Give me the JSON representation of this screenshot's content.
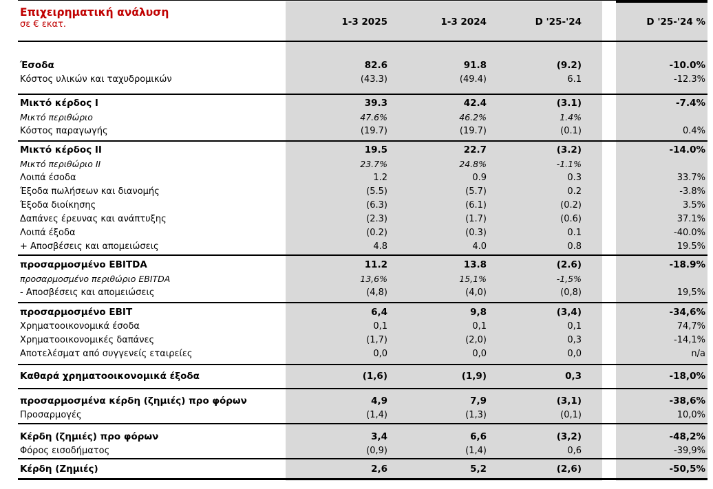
{
  "header": {
    "title": "Επιχειρηματική ανάλυση",
    "subtitle": "σε € εκατ.",
    "columns": [
      "1-3 2025",
      "1-3 2024",
      "D '25-'24",
      "D '25-'24 %"
    ]
  },
  "colors": {
    "accent_red": "#c00000",
    "column_background_gray": "#d9d9d9",
    "border_black": "#000000"
  },
  "sections": [
    {
      "rows": [
        {
          "label": "Έσοδα",
          "style": "bold",
          "values": [
            "82.6",
            "91.8",
            "(9.2)",
            "-10.0%"
          ]
        },
        {
          "label": "Κόστος υλικών και ταχυδρομικών",
          "style": "regular",
          "values": [
            "(43.3)",
            "(49.4)",
            "6.1",
            "-12.3%"
          ]
        }
      ]
    },
    {
      "rows": [
        {
          "label": "Μικτό κέρδος I",
          "style": "bold",
          "values": [
            "39.3",
            "42.4",
            "(3.1)",
            "-7.4%"
          ]
        },
        {
          "label": "Μικτό περιθώριο",
          "style": "italic",
          "values": [
            "47.6%",
            "46.2%",
            "1.4%",
            ""
          ]
        },
        {
          "label": "Κόστος παραγωγής",
          "style": "regular",
          "values": [
            "(19.7)",
            "(19.7)",
            "(0.1)",
            "0.4%"
          ]
        }
      ]
    },
    {
      "rows": [
        {
          "label": "Μικτό κέρδος II",
          "style": "bold",
          "values": [
            "19.5",
            "22.7",
            "(3.2)",
            "-14.0%"
          ]
        },
        {
          "label": "Μικτό περιθώριο II",
          "style": "italic",
          "values": [
            "23.7%",
            "24.8%",
            "-1.1%",
            ""
          ]
        },
        {
          "label": "Λοιπά έσοδα",
          "style": "regular",
          "values": [
            "1.2",
            "0.9",
            "0.3",
            "33.7%"
          ]
        },
        {
          "label": "Έξοδα πωλήσεων και διανομής",
          "style": "regular",
          "values": [
            "(5.5)",
            "(5.7)",
            "0.2",
            "-3.8%"
          ]
        },
        {
          "label": "Έξοδα διοίκησης",
          "style": "regular",
          "values": [
            "(6.3)",
            "(6.1)",
            "(0.2)",
            "3.5%"
          ]
        },
        {
          "label": "Δαπάνες έρευνας και ανάπτυξης",
          "style": "regular",
          "values": [
            "(2.3)",
            "(1.7)",
            "(0.6)",
            "37.1%"
          ]
        },
        {
          "label": "Λοιπά έξοδα",
          "style": "regular",
          "values": [
            "(0.2)",
            "(0.3)",
            "0.1",
            "-40.0%"
          ]
        },
        {
          "label": "+ Αποσβέσεις και απομειώσεις",
          "style": "regular",
          "values": [
            "4.8",
            "4.0",
            "0.8",
            "19.5%"
          ]
        }
      ]
    },
    {
      "rows": [
        {
          "label": "προσαρμοσμένο EBITDA",
          "style": "bold",
          "values": [
            "11.2",
            "13.8",
            "(2.6)",
            "-18.9%"
          ]
        },
        {
          "label": "προσαρμοσμένο περιθώριο EBITDA",
          "style": "italic",
          "values": [
            "13,6%",
            "15,1%",
            "-1,5%",
            ""
          ]
        },
        {
          "label": "- Αποσβέσεις και απομειώσεις",
          "style": "regular",
          "values": [
            "(4,8)",
            "(4,0)",
            "(0,8)",
            "19,5%"
          ]
        }
      ]
    },
    {
      "rows": [
        {
          "label": "προσαρμοσμένο EBIT",
          "style": "bold",
          "values": [
            "6,4",
            "9,8",
            "(3,4)",
            "-34,6%"
          ]
        },
        {
          "label": "Χρηματοοικονομικά έσοδα",
          "style": "regular",
          "values": [
            "0,1",
            "0,1",
            "0,1",
            "74,7%"
          ]
        },
        {
          "label": "Χρηματοοικονομικές δαπάνες",
          "style": "regular",
          "values": [
            "(1,7)",
            "(2,0)",
            "0,3",
            "-14,1%"
          ]
        },
        {
          "label": "Αποτελέσματ από συγγενείς εταιρείες",
          "style": "regular",
          "values": [
            "0,0",
            "0,0",
            "0,0",
            "n/a"
          ]
        }
      ]
    },
    {
      "rows": [
        {
          "label": "Καθαρά χρηματοοικονομικά έξοδα",
          "style": "bold",
          "values": [
            "(1,6)",
            "(1,9)",
            "0,3",
            "-18,0%"
          ]
        }
      ]
    },
    {
      "rows": [
        {
          "label": "προσαρμοσμένα κέρδη (ζημιές) προ φόρων",
          "style": "bold",
          "values": [
            "4,9",
            "7,9",
            "(3,1)",
            "-38,6%"
          ]
        },
        {
          "label": "Προσαρμογές",
          "style": "regular",
          "values": [
            "(1,4)",
            "(1,3)",
            "(0,1)",
            "10,0%"
          ]
        }
      ]
    },
    {
      "rows": [
        {
          "label": "Κέρδη (ζημιές) προ φόρων",
          "style": "bold",
          "values": [
            "3,4",
            "6,6",
            "(3,2)",
            "-48,2%"
          ]
        },
        {
          "label": "Φόρος εισοδήματος",
          "style": "regular",
          "values": [
            "(0,9)",
            "(1,4)",
            "0,6",
            "-39,9%"
          ]
        }
      ]
    },
    {
      "rows": [
        {
          "label": "Κέρδη (Ζημιές)",
          "style": "bold",
          "values": [
            "2,6",
            "5,2",
            "(2,6)",
            "-50,5%"
          ]
        }
      ]
    }
  ]
}
